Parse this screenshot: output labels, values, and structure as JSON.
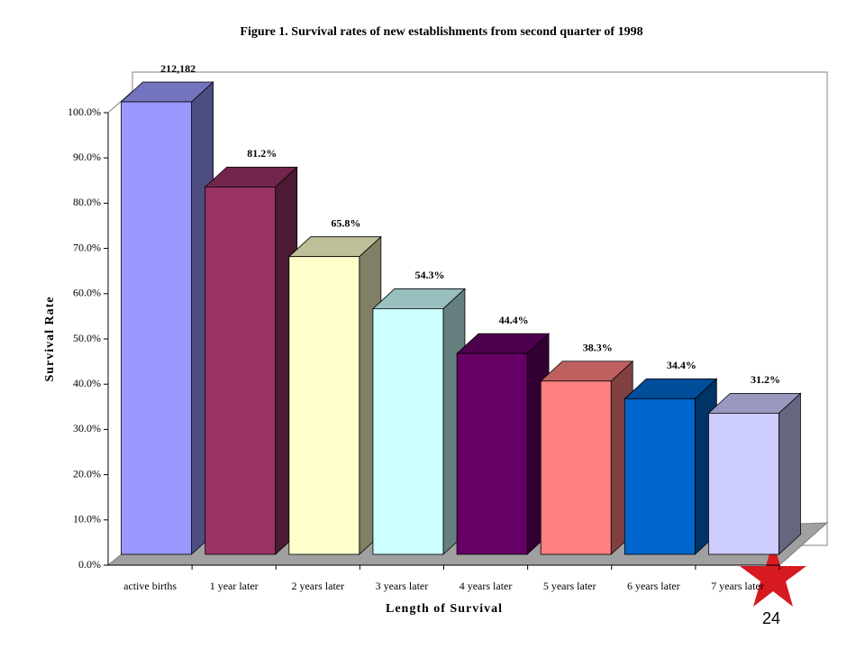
{
  "chart_data": {
    "type": "bar3d",
    "title": "Figure 1. Survival rates of new establishments from second quarter of 1998",
    "x_label": "Length of Survival",
    "y_label": "Survival Rate",
    "categories": [
      "active births",
      "1 year later",
      "2 years later",
      "3 years later",
      "4 years later",
      "5 years later",
      "6 years later",
      "7 years later"
    ],
    "values": [
      100,
      81.2,
      65.8,
      54.3,
      44.4,
      38.3,
      34.4,
      31.2
    ],
    "value_labels": [
      null,
      "81.2%",
      "65.8%",
      "54.3%",
      "44.4%",
      "38.3%",
      "34.4%",
      "31.2%"
    ],
    "annotation": "212,182",
    "colors": [
      "#9999ff",
      "#993366",
      "#ffffcc",
      "#ccffff",
      "#660066",
      "#ff8080",
      "#0066cc",
      "#ccccff"
    ],
    "ylim": [
      0,
      100
    ],
    "yticks": [
      {
        "value": 0,
        "label": "0.0%"
      },
      {
        "value": 10,
        "label": "10.0%"
      },
      {
        "value": 20,
        "label": "20.0%"
      },
      {
        "value": 30,
        "label": "30.0%"
      },
      {
        "value": 40,
        "label": "40.0%"
      },
      {
        "value": 50,
        "label": "50.0%"
      },
      {
        "value": 60,
        "label": "60.0%"
      },
      {
        "value": 70,
        "label": "70.0%"
      },
      {
        "value": 80,
        "label": "80.0%"
      },
      {
        "value": 90,
        "label": "90.0%"
      },
      {
        "value": 100,
        "label": "100.0%"
      }
    ],
    "page_number": "24"
  }
}
